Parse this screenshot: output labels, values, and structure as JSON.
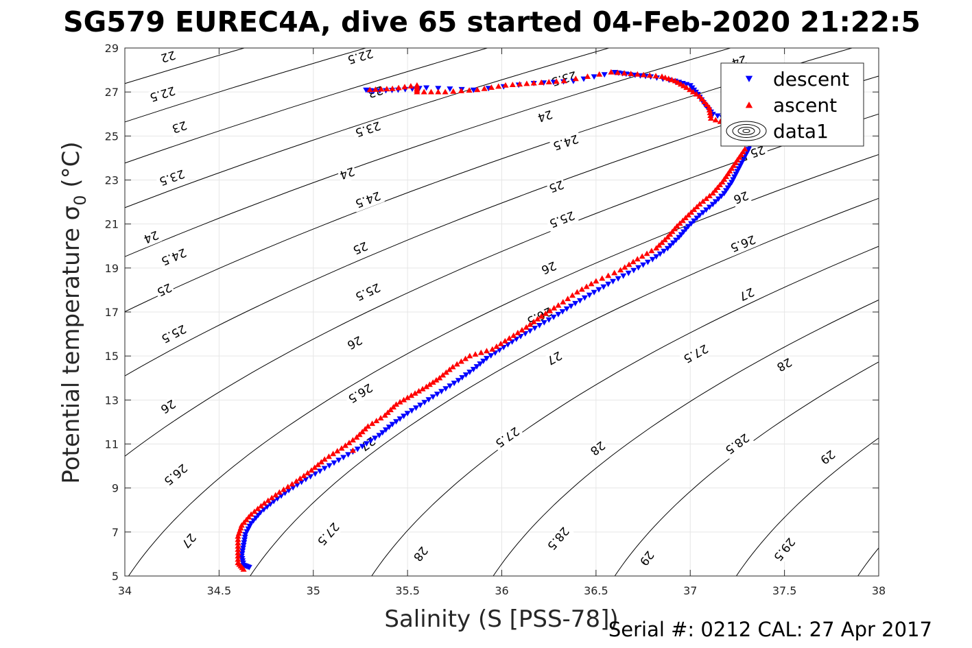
{
  "chart_data": {
    "type": "scatter",
    "title": "SG579 EUREC4A, dive 65 started 04-Feb-2020 21:22:5",
    "xlabel": "Salinity (S [PSS-78])",
    "ylabel_main": "Potential temperature ",
    "ylabel_sigma": "σ",
    "ylabel_sub": "0",
    "ylabel_unit": " (°C)",
    "footer": "Serial #: 0212  CAL: 27 Apr 2017",
    "xlim": [
      34,
      38
    ],
    "ylim": [
      5,
      29
    ],
    "xticks": [
      "34",
      "34.5",
      "35",
      "35.5",
      "36",
      "36.5",
      "37",
      "37.5",
      "38"
    ],
    "yticks": [
      "5",
      "7",
      "9",
      "11",
      "13",
      "15",
      "17",
      "19",
      "21",
      "23",
      "25",
      "27",
      "29"
    ],
    "grid": true,
    "legend": {
      "placement": "top-right",
      "entries": [
        {
          "name": "descent",
          "color": "#0000ff",
          "marker": "triangle-down"
        },
        {
          "name": "ascent",
          "color": "#ff0000",
          "marker": "triangle-up"
        },
        {
          "name": "data1",
          "color": "#000000",
          "marker": "contour"
        }
      ]
    },
    "contours": {
      "levels": [
        22,
        22.5,
        23,
        23.5,
        24,
        24.5,
        25,
        25.5,
        26,
        26.5,
        27,
        27.5,
        28,
        28.5,
        29,
        29.5,
        30
      ],
      "labels": [
        {
          "text": "22",
          "s": 34.23,
          "t": 28.6
        },
        {
          "text": "22.5",
          "s": 34.2,
          "t": 26.9
        },
        {
          "text": "23",
          "s": 34.29,
          "t": 25.4
        },
        {
          "text": "23.5",
          "s": 34.25,
          "t": 23.1
        },
        {
          "text": "24",
          "s": 34.14,
          "t": 20.4
        },
        {
          "text": "24.5",
          "s": 34.26,
          "t": 19.5
        },
        {
          "text": "25",
          "s": 34.21,
          "t": 18.0
        },
        {
          "text": "25.5",
          "s": 34.26,
          "t": 16.0
        },
        {
          "text": "26",
          "s": 34.23,
          "t": 12.7
        },
        {
          "text": "26.5",
          "s": 34.27,
          "t": 9.6
        },
        {
          "text": "27",
          "s": 34.34,
          "t": 6.6
        },
        {
          "text": "22.5",
          "s": 35.25,
          "t": 28.6
        },
        {
          "text": "23",
          "s": 35.33,
          "t": 27.0
        },
        {
          "text": "23.5",
          "s": 35.29,
          "t": 25.3
        },
        {
          "text": "24",
          "s": 35.18,
          "t": 23.3
        },
        {
          "text": "24.5",
          "s": 35.29,
          "t": 22.1
        },
        {
          "text": "25",
          "s": 35.25,
          "t": 19.9
        },
        {
          "text": "25.5",
          "s": 35.29,
          "t": 17.9
        },
        {
          "text": "26",
          "s": 35.22,
          "t": 15.6
        },
        {
          "text": "26.5",
          "s": 35.25,
          "t": 13.3
        },
        {
          "text": "27",
          "s": 35.29,
          "t": 11.0
        },
        {
          "text": "27.5",
          "s": 35.08,
          "t": 6.9
        },
        {
          "text": "28",
          "s": 35.57,
          "t": 6.0
        },
        {
          "text": "23.5",
          "s": 36.33,
          "t": 27.6
        },
        {
          "text": "24",
          "s": 36.23,
          "t": 25.9
        },
        {
          "text": "24.5",
          "s": 36.34,
          "t": 24.7
        },
        {
          "text": "25",
          "s": 36.29,
          "t": 22.7
        },
        {
          "text": "25.5",
          "s": 36.32,
          "t": 21.2
        },
        {
          "text": "26",
          "s": 36.25,
          "t": 19.0
        },
        {
          "text": "26.5",
          "s": 36.2,
          "t": 16.8
        },
        {
          "text": "27",
          "s": 36.28,
          "t": 14.9
        },
        {
          "text": "27.5",
          "s": 36.03,
          "t": 11.3
        },
        {
          "text": "28",
          "s": 36.51,
          "t": 10.8
        },
        {
          "text": "28.5",
          "s": 36.3,
          "t": 6.7
        },
        {
          "text": "29",
          "s": 36.77,
          "t": 5.8
        },
        {
          "text": "24",
          "s": 37.26,
          "t": 28.4
        },
        {
          "text": "25.5",
          "s": 37.33,
          "t": 24.2
        },
        {
          "text": "26",
          "s": 37.27,
          "t": 22.2
        },
        {
          "text": "26.5",
          "s": 37.28,
          "t": 20.1
        },
        {
          "text": "27",
          "s": 37.3,
          "t": 17.8
        },
        {
          "text": "27.5",
          "s": 37.03,
          "t": 15.1
        },
        {
          "text": "28",
          "s": 37.5,
          "t": 14.6
        },
        {
          "text": "28.5",
          "s": 37.25,
          "t": 11.0
        },
        {
          "text": "29",
          "s": 37.73,
          "t": 10.4
        },
        {
          "text": "29.5",
          "s": 37.5,
          "t": 6.2
        }
      ]
    },
    "series": [
      {
        "name": "descent",
        "color": "#0000ff",
        "marker": "triangle-down",
        "points": [
          [
            34.66,
            5.4
          ],
          [
            34.63,
            5.5
          ],
          [
            34.62,
            5.9
          ],
          [
            34.63,
            6.4
          ],
          [
            34.64,
            6.9
          ],
          [
            34.67,
            7.4
          ],
          [
            34.72,
            7.9
          ],
          [
            34.79,
            8.4
          ],
          [
            34.87,
            8.9
          ],
          [
            34.96,
            9.4
          ],
          [
            35.06,
            9.9
          ],
          [
            35.16,
            10.4
          ],
          [
            35.26,
            10.9
          ],
          [
            35.35,
            11.4
          ],
          [
            35.42,
            11.9
          ],
          [
            35.5,
            12.4
          ],
          [
            35.59,
            12.9
          ],
          [
            35.68,
            13.4
          ],
          [
            35.77,
            13.9
          ],
          [
            35.85,
            14.4
          ],
          [
            35.92,
            14.9
          ],
          [
            36.01,
            15.4
          ],
          [
            36.1,
            15.9
          ],
          [
            36.2,
            16.4
          ],
          [
            36.3,
            16.9
          ],
          [
            36.39,
            17.4
          ],
          [
            36.49,
            17.9
          ],
          [
            36.59,
            18.4
          ],
          [
            36.7,
            18.9
          ],
          [
            36.8,
            19.4
          ],
          [
            36.88,
            19.9
          ],
          [
            36.94,
            20.4
          ],
          [
            36.99,
            20.9
          ],
          [
            37.05,
            21.4
          ],
          [
            37.12,
            21.9
          ],
          [
            37.18,
            22.4
          ],
          [
            37.22,
            22.9
          ],
          [
            37.25,
            23.4
          ],
          [
            37.28,
            23.9
          ],
          [
            37.31,
            24.4
          ],
          [
            37.33,
            24.9
          ],
          [
            37.32,
            25.4
          ],
          [
            37.22,
            25.7
          ],
          [
            37.12,
            26.0
          ],
          [
            37.08,
            26.4
          ],
          [
            37.04,
            26.9
          ],
          [
            37.0,
            27.3
          ],
          [
            36.92,
            27.5
          ],
          [
            36.79,
            27.7
          ],
          [
            36.68,
            27.8
          ],
          [
            36.6,
            27.9
          ],
          [
            36.38,
            27.5
          ],
          [
            36.17,
            27.4
          ],
          [
            35.85,
            27.1
          ],
          [
            35.6,
            27.2
          ],
          [
            35.45,
            27.1
          ],
          [
            35.32,
            27.05
          ],
          [
            35.28,
            27.1
          ]
        ]
      },
      {
        "name": "ascent",
        "color": "#ff0000",
        "marker": "triangle-up",
        "points": [
          [
            34.63,
            5.3
          ],
          [
            34.6,
            5.6
          ],
          [
            34.6,
            6.2
          ],
          [
            34.6,
            6.8
          ],
          [
            34.62,
            7.3
          ],
          [
            34.67,
            7.8
          ],
          [
            34.74,
            8.3
          ],
          [
            34.82,
            8.8
          ],
          [
            34.91,
            9.3
          ],
          [
            34.99,
            9.8
          ],
          [
            35.06,
            10.3
          ],
          [
            35.15,
            10.8
          ],
          [
            35.23,
            11.3
          ],
          [
            35.29,
            11.8
          ],
          [
            35.38,
            12.3
          ],
          [
            35.44,
            12.8
          ],
          [
            35.52,
            13.2
          ],
          [
            35.6,
            13.6
          ],
          [
            35.67,
            14.0
          ],
          [
            35.74,
            14.5
          ],
          [
            35.83,
            15.0
          ],
          [
            35.95,
            15.3
          ],
          [
            36.04,
            15.8
          ],
          [
            36.13,
            16.3
          ],
          [
            36.21,
            16.8
          ],
          [
            36.3,
            17.3
          ],
          [
            36.4,
            17.9
          ],
          [
            36.5,
            18.4
          ],
          [
            36.63,
            18.9
          ],
          [
            36.72,
            19.4
          ],
          [
            36.82,
            19.9
          ],
          [
            36.88,
            20.4
          ],
          [
            36.93,
            20.9
          ],
          [
            36.99,
            21.4
          ],
          [
            37.05,
            21.9
          ],
          [
            37.12,
            22.4
          ],
          [
            37.17,
            22.9
          ],
          [
            37.21,
            23.4
          ],
          [
            37.25,
            23.9
          ],
          [
            37.29,
            24.4
          ],
          [
            37.21,
            25.5
          ],
          [
            37.11,
            25.8
          ],
          [
            37.1,
            26.3
          ],
          [
            37.05,
            26.8
          ],
          [
            36.98,
            27.2
          ],
          [
            36.92,
            27.5
          ],
          [
            36.85,
            27.7
          ],
          [
            36.72,
            27.8
          ],
          [
            36.58,
            27.9
          ],
          [
            36.33,
            27.5
          ],
          [
            36.17,
            27.4
          ],
          [
            36.02,
            27.3
          ],
          [
            35.87,
            27.1
          ],
          [
            35.7,
            27.0
          ],
          [
            35.55,
            27.0
          ],
          [
            35.55,
            27.3
          ],
          [
            35.42,
            27.15
          ],
          [
            35.3,
            27.1
          ],
          [
            35.21,
            10.7
          ]
        ]
      }
    ]
  }
}
